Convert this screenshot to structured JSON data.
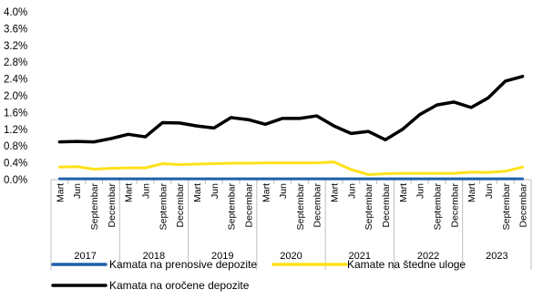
{
  "chart_data": {
    "type": "line",
    "title": "",
    "xlabel": "",
    "ylabel": "",
    "ylim": [
      0,
      4.0
    ],
    "y_ticks": [
      "4.0%",
      "3.6%",
      "3.2%",
      "2.8%",
      "2.4%",
      "2.0%",
      "1.6%",
      "1.2%",
      "0.8%",
      "0.4%",
      "0.0%"
    ],
    "grid": false,
    "legend_position": "bottom",
    "years": [
      "2017",
      "2018",
      "2019",
      "2020",
      "2021",
      "2022",
      "2023"
    ],
    "quarters": [
      "Mart",
      "Jun",
      "Septembar",
      "Decembar"
    ],
    "categories": [
      "Mart 2017",
      "Jun 2017",
      "Septembar 2017",
      "Decembar 2017",
      "Mart 2018",
      "Jun 2018",
      "Septembar 2018",
      "Decembar 2018",
      "Mart 2019",
      "Jun 2019",
      "Septembar 2019",
      "Decembar 2019",
      "Mart 2020",
      "Jun 2020",
      "Septembar 2020",
      "Decembar 2020",
      "Mart 2021",
      "Jun 2021",
      "Septembar 2021",
      "Decembar 2021",
      "Mart 2022",
      "Jun 2022",
      "Septembar 2022",
      "Decembar 2022",
      "Mart 2023",
      "Jun 2023",
      "Septembar 2023",
      "Decembar 2023"
    ],
    "series": [
      {
        "name": "Kamata na prenosive depozite",
        "color": "#1F5FAA",
        "values": [
          0.02,
          0.02,
          0.02,
          0.02,
          0.02,
          0.02,
          0.02,
          0.02,
          0.02,
          0.02,
          0.02,
          0.02,
          0.02,
          0.02,
          0.02,
          0.02,
          0.02,
          0.02,
          0.02,
          0.02,
          0.02,
          0.02,
          0.02,
          0.02,
          0.02,
          0.02,
          0.02,
          0.02
        ]
      },
      {
        "name": "Kamate na štedne uloge",
        "color": "#FFE11A",
        "values": [
          0.3,
          0.31,
          0.25,
          0.27,
          0.28,
          0.28,
          0.38,
          0.36,
          0.37,
          0.38,
          0.39,
          0.39,
          0.4,
          0.4,
          0.4,
          0.4,
          0.42,
          0.24,
          0.12,
          0.14,
          0.15,
          0.15,
          0.15,
          0.15,
          0.18,
          0.17,
          0.2,
          0.3
        ]
      },
      {
        "name": "Kamata na oročene depozite",
        "color": "#000000",
        "values": [
          0.9,
          0.91,
          0.9,
          0.98,
          1.08,
          1.02,
          1.36,
          1.35,
          1.28,
          1.23,
          1.48,
          1.43,
          1.32,
          1.46,
          1.46,
          1.52,
          1.28,
          1.1,
          1.15,
          0.95,
          1.2,
          1.55,
          1.78,
          1.85,
          1.72,
          1.95,
          2.35,
          2.46
        ]
      }
    ]
  }
}
